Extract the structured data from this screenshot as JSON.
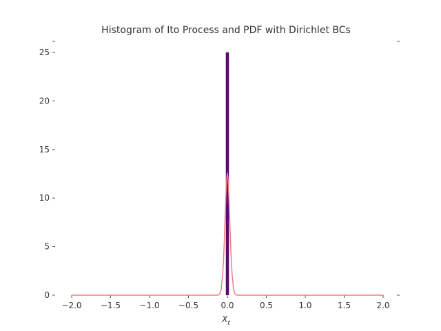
{
  "chart_data": {
    "type": "bar",
    "title": "Histogram of Ito Process and PDF with Dirichlet BCs",
    "xlabel": "X_t",
    "xlabel_main": "X",
    "xlabel_sub": "t",
    "ylabel": "",
    "xlim": [
      -2.0,
      2.0
    ],
    "ylim": [
      0,
      25
    ],
    "x_ticks": [
      -2.0,
      -1.5,
      -1.0,
      -0.5,
      0.0,
      0.5,
      1.0,
      1.5,
      2.0
    ],
    "x_tick_labels": [
      "−2.0",
      "−1.5",
      "−1.0",
      "−0.5",
      "0.0",
      "0.5",
      "1.0",
      "1.5",
      "2.0"
    ],
    "y_ticks": [
      0,
      5,
      10,
      15,
      20,
      25
    ],
    "y_tick_labels": [
      "0",
      "5",
      "10",
      "15",
      "20",
      "25"
    ],
    "grid": false,
    "series": [
      {
        "kind": "histogram",
        "color": "#5b0a6e",
        "bins": [
          {
            "x0": -0.02,
            "x1": 0.02,
            "value": 25.0
          }
        ]
      },
      {
        "kind": "line",
        "color": "#ee7d84",
        "x": [
          -2.0,
          -0.5,
          -0.2,
          -0.15,
          -0.12,
          -0.1,
          -0.08,
          -0.06,
          -0.05,
          -0.04,
          -0.03,
          -0.02,
          -0.01,
          0.0,
          0.01,
          0.02,
          0.03,
          0.04,
          0.05,
          0.06,
          0.08,
          0.1,
          0.12,
          0.15,
          0.2,
          0.5,
          2.0
        ],
        "y": [
          0,
          0,
          0.0,
          0.0,
          0.0,
          0.1,
          0.6,
          2.2,
          3.6,
          5.5,
          7.8,
          10.0,
          11.9,
          12.6,
          11.9,
          10.0,
          7.8,
          5.5,
          3.6,
          2.2,
          0.6,
          0.1,
          0.0,
          0.0,
          0.0,
          0,
          0
        ]
      }
    ]
  }
}
